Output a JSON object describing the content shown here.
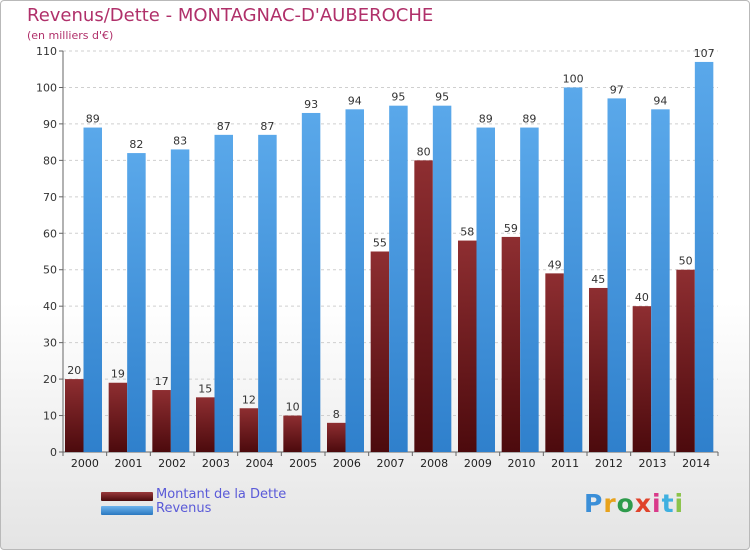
{
  "chart_data": {
    "type": "bar",
    "title": "Revenus/Dette - MONTAGNAC-D'AUBEROCHE",
    "subtitle": "(en milliers d'€)",
    "categories": [
      "2000",
      "2001",
      "2002",
      "2003",
      "2004",
      "2005",
      "2006",
      "2007",
      "2008",
      "2009",
      "2010",
      "2011",
      "2012",
      "2013",
      "2014"
    ],
    "series": [
      {
        "name": "Montant de la Dette",
        "color": "#7a1f22",
        "values": [
          20,
          19,
          17,
          15,
          12,
          10,
          8,
          55,
          80,
          58,
          59,
          49,
          45,
          40,
          50
        ]
      },
      {
        "name": "Revenus",
        "color": "#3d8fd6",
        "values": [
          89,
          82,
          83,
          87,
          87,
          93,
          94,
          95,
          95,
          89,
          89,
          100,
          97,
          94,
          107
        ]
      }
    ],
    "yticks": [
      0,
      10,
      20,
      30,
      40,
      50,
      60,
      70,
      80,
      90,
      100,
      110
    ],
    "ylim": [
      0,
      110
    ],
    "grid": true,
    "legend": "bottom-left"
  },
  "logo": {
    "text": "Proxiti"
  }
}
